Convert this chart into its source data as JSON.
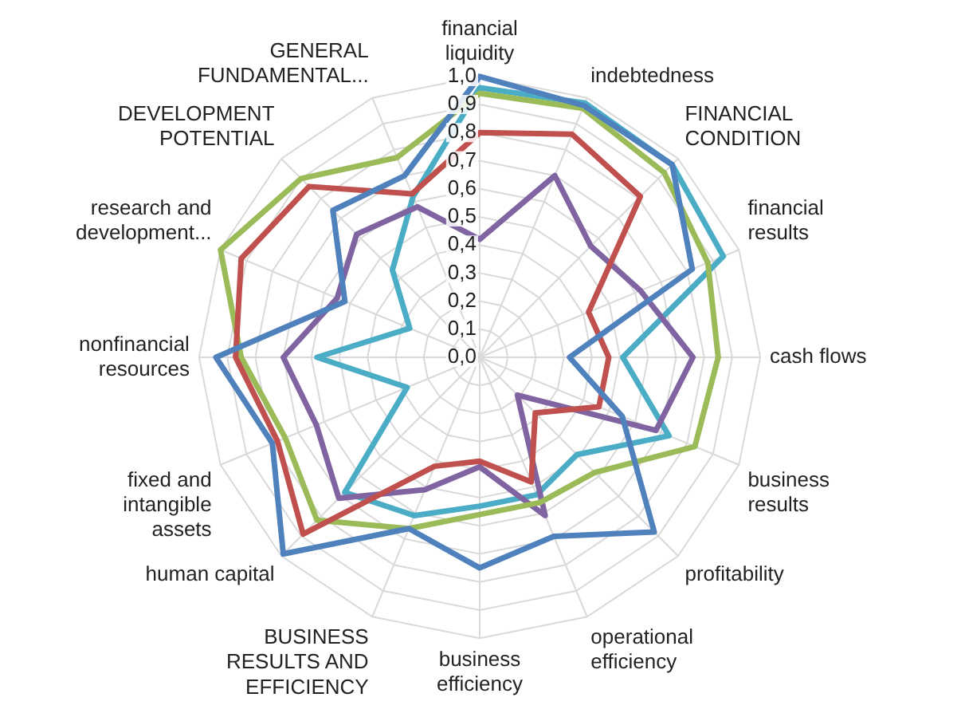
{
  "chart_data": {
    "type": "radar",
    "categories": [
      "financial liquidity",
      "indebtedness",
      "FINANCIAL CONDITION",
      "financial results",
      "cash flows",
      "business results",
      "profitability",
      "operational efficiency",
      "business efficiency",
      "BUSINESS RESULTS AND EFFICIENCY",
      "human capital",
      "fixed and intangible assets",
      "nonfinancial resources",
      "research and development...",
      "DEVELOPMENT POTENTIAL",
      "GENERAL FUNDAMENTAL..."
    ],
    "series": [
      {
        "color": "#4f81bd",
        "values": [
          1.0,
          0.97,
          0.97,
          0.82,
          0.32,
          0.55,
          0.88,
          0.69,
          0.75,
          0.66,
          0.99,
          0.8,
          0.94,
          0.52,
          0.74,
          0.7
        ]
      },
      {
        "color": "#c0504d",
        "values": [
          0.8,
          0.86,
          0.81,
          0.42,
          0.46,
          0.46,
          0.28,
          0.48,
          0.37,
          0.42,
          0.89,
          0.78,
          0.87,
          0.92,
          0.86,
          0.63
        ]
      },
      {
        "color": "#9bbb59",
        "values": [
          0.94,
          0.96,
          0.93,
          0.88,
          0.85,
          0.83,
          0.58,
          0.56,
          0.56,
          0.66,
          0.82,
          0.75,
          0.85,
          1.0,
          0.9,
          0.77
        ]
      },
      {
        "color": "#8064a2",
        "values": [
          0.42,
          0.7,
          0.56,
          0.62,
          0.76,
          0.68,
          0.19,
          0.61,
          0.39,
          0.51,
          0.71,
          0.63,
          0.7,
          0.55,
          0.62,
          0.58
        ]
      },
      {
        "color": "#4bacc6",
        "values": [
          0.96,
          0.98,
          0.97,
          0.94,
          0.51,
          0.73,
          0.49,
          0.53,
          0.53,
          0.61,
          0.68,
          0.28,
          0.58,
          0.27,
          0.44,
          0.62
        ]
      }
    ],
    "ylim": [
      0,
      1
    ],
    "yticks": [
      {
        "value": 0,
        "label": "0,0"
      },
      {
        "value": 0.1,
        "label": "0,1"
      },
      {
        "value": 0.2,
        "label": "0,2"
      },
      {
        "value": 0.3,
        "label": "0,3"
      },
      {
        "value": 0.4,
        "label": "0,4"
      },
      {
        "value": 0.5,
        "label": "0,5"
      },
      {
        "value": 0.6,
        "label": "0,6"
      },
      {
        "value": 0.7,
        "label": "0,7"
      },
      {
        "value": 0.8,
        "label": "0,8"
      },
      {
        "value": 0.9,
        "label": "0,9"
      },
      {
        "value": 1,
        "label": "1,0"
      }
    ],
    "grid": true,
    "marker": "none",
    "line_style": "solid"
  }
}
